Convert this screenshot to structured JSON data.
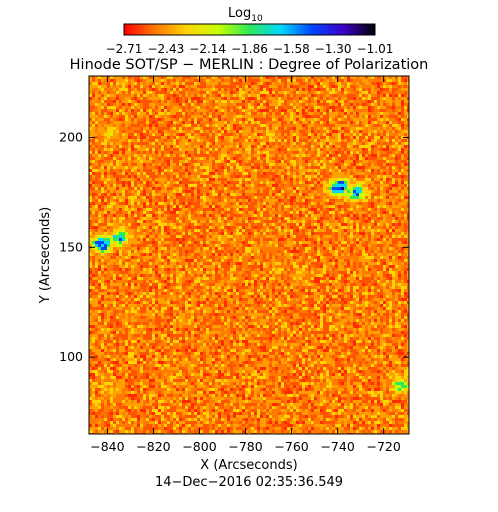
{
  "colorbar": {
    "label_base": "Log",
    "label_sub": "10",
    "ticks": [
      "−2.71",
      "−2.43",
      "−2.14",
      "−1.86",
      "−1.58",
      "−1.30",
      "−1.01"
    ],
    "colors": [
      "#ff0000",
      "#ff7a00",
      "#ffd400",
      "#c8ff00",
      "#2ee85a",
      "#00d8ff",
      "#0044ff",
      "#3c00c8",
      "#000000"
    ]
  },
  "chart_data": {
    "type": "heatmap",
    "title": "Hinode SOT/SP − MERLIN : Degree of Polarization",
    "xlabel": "X (Arcseconds)",
    "ylabel": "Y (Arcseconds)",
    "xlim": [
      -848,
      -709
    ],
    "ylim": [
      65,
      228
    ],
    "x_ticks": [
      -840,
      -820,
      -800,
      -780,
      -760,
      -740,
      -720
    ],
    "x_tick_labels": [
      "−840",
      "−820",
      "−800",
      "−780",
      "−760",
      "−740",
      "−720"
    ],
    "y_ticks": [
      100,
      150,
      200
    ],
    "y_tick_labels": [
      "100",
      "150",
      "200"
    ],
    "color_scale": "log10 degree of polarization",
    "value_range": [
      -2.71,
      -1.01
    ],
    "high_polarization_regions": [
      {
        "x": -843,
        "y": 152,
        "level": 0.95
      },
      {
        "x": -835,
        "y": 155,
        "level": 0.8
      },
      {
        "x": -740,
        "y": 178,
        "level": 0.95
      },
      {
        "x": -733,
        "y": 176,
        "level": 0.85
      },
      {
        "x": -839,
        "y": 203,
        "level": 0.55
      },
      {
        "x": -713,
        "y": 88,
        "level": 0.7
      },
      {
        "x": -757,
        "y": 138,
        "level": 0.45
      },
      {
        "x": -838,
        "y": 85,
        "level": 0.45
      },
      {
        "x": -770,
        "y": 150,
        "level": 0.35
      },
      {
        "x": -830,
        "y": 120,
        "level": 0.35
      },
      {
        "x": -790,
        "y": 115,
        "level": 0.3
      },
      {
        "x": -740,
        "y": 115,
        "level": 0.35
      },
      {
        "x": -760,
        "y": 190,
        "level": 0.3
      }
    ]
  },
  "footer": {
    "timestamp": "14−Dec−2016 02:35:36.549"
  }
}
